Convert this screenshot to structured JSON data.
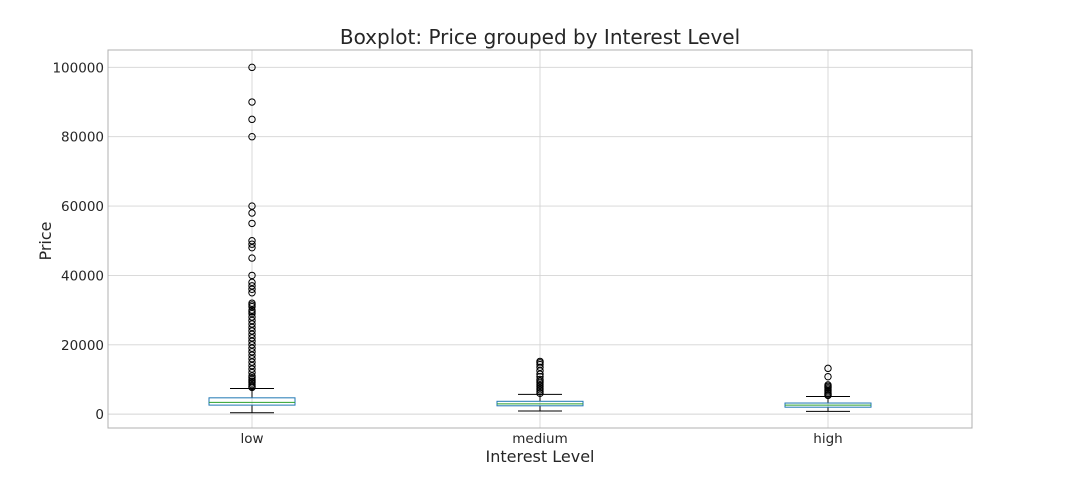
{
  "chart_data": {
    "type": "boxplot",
    "title": "Boxplot: Price grouped by Interest Level",
    "xlabel": "Interest Level",
    "ylabel": "Price",
    "categories": [
      "low",
      "medium",
      "high"
    ],
    "ylim": [
      -4000,
      105000
    ],
    "yticks": [
      0,
      20000,
      40000,
      60000,
      80000,
      100000
    ],
    "yticklabels": [
      "0",
      "20000",
      "40000",
      "60000",
      "80000",
      "100000"
    ],
    "grid": true,
    "boxes": [
      {
        "category": "low",
        "whisker_low": 400,
        "q1": 2600,
        "median": 3400,
        "q3": 4700,
        "whisker_high": 7400,
        "outliers": [
          100000,
          90000,
          85000,
          80000,
          60000,
          58000,
          55000,
          50000,
          49000,
          48000,
          45000,
          40000,
          38000,
          37000,
          36000,
          35000,
          32000,
          31500,
          31000,
          30000,
          29500,
          29000,
          28000,
          27000,
          26000,
          25000,
          24000,
          23000,
          22000,
          21000,
          20000,
          19000,
          18000,
          17000,
          16000,
          15000,
          14000,
          13000,
          12000,
          11000,
          10500,
          10000,
          9500,
          9000,
          8500,
          8000,
          7700
        ]
      },
      {
        "category": "medium",
        "whisker_low": 900,
        "q1": 2400,
        "median": 2950,
        "q3": 3700,
        "whisker_high": 5700,
        "outliers": [
          15200,
          14800,
          14300,
          13500,
          12500,
          11500,
          10800,
          10000,
          9500,
          9000,
          8500,
          8000,
          7500,
          7000,
          6500,
          6000
        ]
      },
      {
        "category": "high",
        "whisker_low": 800,
        "q1": 2000,
        "median": 2600,
        "q3": 3200,
        "whisker_high": 5100,
        "outliers": [
          13200,
          10800,
          8400,
          8000,
          7600,
          7200,
          6800,
          6400,
          6000,
          5600,
          5400
        ]
      }
    ],
    "colors": {
      "box": "#1f77b4",
      "median": "#2ca02c",
      "whisker": "#000000",
      "flier": "#000000",
      "grid": "#d4d4d4",
      "spine": "#b0b0b0"
    }
  }
}
